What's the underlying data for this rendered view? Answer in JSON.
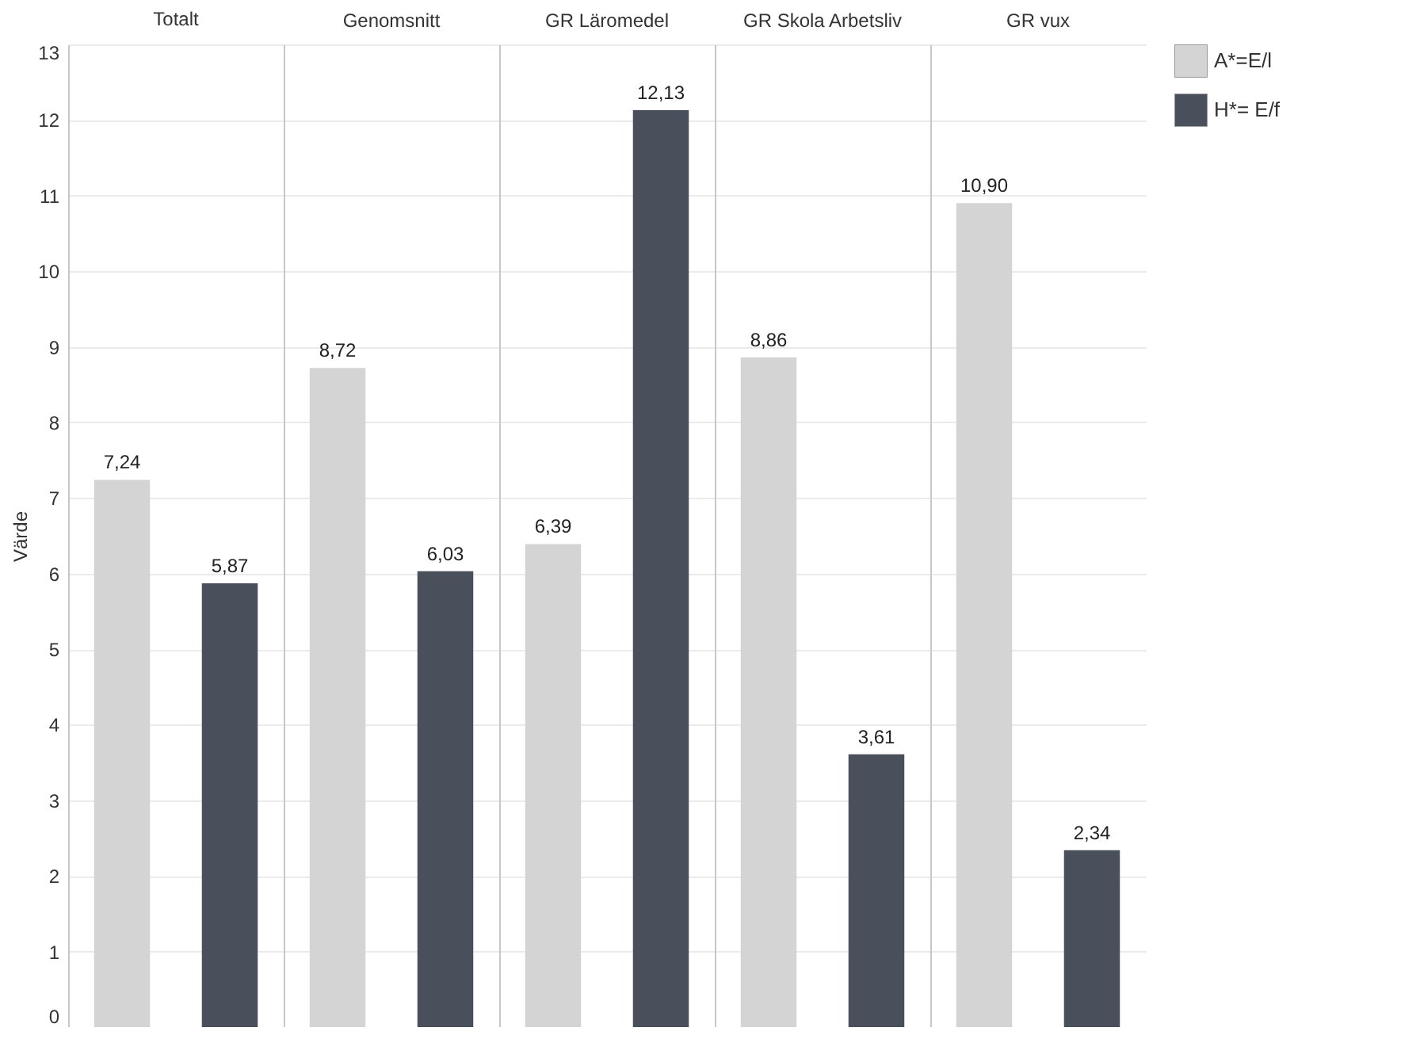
{
  "chart_data": {
    "type": "bar",
    "ylabel": "Värde",
    "categories": [
      "Totalt",
      "Genomsnitt",
      "GR Läromedel",
      "GR Skola Arbetsliv",
      "GR vux"
    ],
    "series": [
      {
        "name": "A*=E/l",
        "color": "#d4d4d4",
        "values": [
          7.24,
          8.72,
          6.39,
          8.86,
          10.9
        ],
        "value_labels": [
          "7,24",
          "8,72",
          "6,39",
          "8,86",
          "10,90"
        ]
      },
      {
        "name": "H*= E/f",
        "color": "#4a505b",
        "values": [
          5.87,
          6.03,
          12.13,
          3.61,
          2.34
        ],
        "value_labels": [
          "5,87",
          "6,03",
          "12,13",
          "3,61",
          "2,34"
        ]
      }
    ],
    "ylim": [
      0,
      13
    ],
    "yticks": [
      0,
      1,
      2,
      3,
      4,
      5,
      6,
      7,
      8,
      9,
      10,
      11,
      12,
      13
    ],
    "grid": "y",
    "legend": "right"
  }
}
